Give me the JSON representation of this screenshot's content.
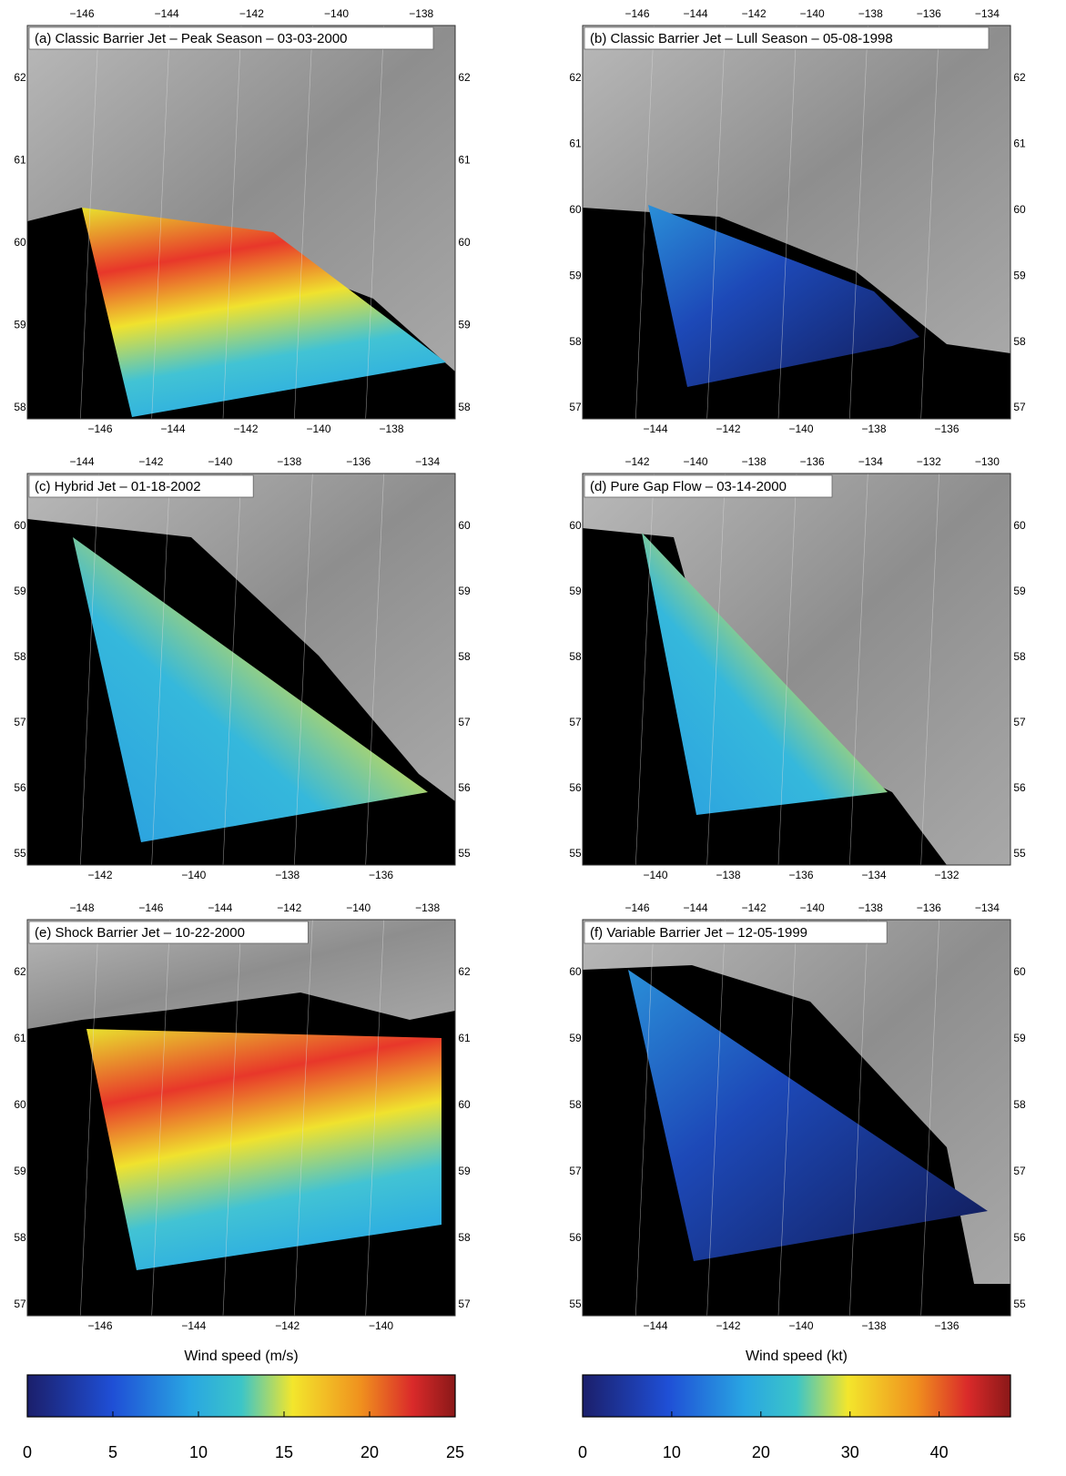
{
  "panels": [
    {
      "title": "(a) Classic Barrier Jet – Peak Season – 03-03-2000",
      "top_lon": [
        "−146",
        "−144",
        "−142",
        "−140",
        "−138"
      ],
      "bottom_lon": [
        "−146",
        "−144",
        "−142",
        "−140",
        "−138"
      ],
      "lat": [
        62,
        61,
        60,
        59,
        58
      ]
    },
    {
      "title": "(b) Classic Barrier Jet – Lull Season – 05-08-1998",
      "top_lon": [
        "−146",
        "−144",
        "−142",
        "−140",
        "−138",
        "−136",
        "−134"
      ],
      "bottom_lon": [
        "−144",
        "−142",
        "−140",
        "−138",
        "−136"
      ],
      "lat": [
        62,
        61,
        60,
        59,
        58,
        57
      ]
    },
    {
      "title": "(c) Hybrid Jet – 01-18-2002",
      "top_lon": [
        "−144",
        "−142",
        "−140",
        "−138",
        "−136",
        "−134"
      ],
      "bottom_lon": [
        "−142",
        "−140",
        "−138",
        "−136"
      ],
      "lat": [
        60,
        59,
        58,
        57,
        56,
        55
      ]
    },
    {
      "title": "(d) Pure Gap Flow – 03-14-2000",
      "top_lon": [
        "−142",
        "−140",
        "−138",
        "−136",
        "−134",
        "−132",
        "−130"
      ],
      "bottom_lon": [
        "−140",
        "−138",
        "−136",
        "−134",
        "−132"
      ],
      "lat": [
        60,
        59,
        58,
        57,
        56,
        55
      ]
    },
    {
      "title": "(e) Shock Barrier Jet – 10-22-2000",
      "top_lon": [
        "−148",
        "−146",
        "−144",
        "−142",
        "−140",
        "−138"
      ],
      "bottom_lon": [
        "−146",
        "−144",
        "−142",
        "−140"
      ],
      "lat": [
        62,
        61,
        60,
        59,
        58,
        57
      ]
    },
    {
      "title": "(f) Variable Barrier Jet – 12-05-1999",
      "top_lon": [
        "−146",
        "−144",
        "−142",
        "−140",
        "−138",
        "−136",
        "−134"
      ],
      "bottom_lon": [
        "−144",
        "−142",
        "−140",
        "−138",
        "−136"
      ],
      "lat": [
        60,
        59,
        58,
        57,
        56,
        55
      ]
    }
  ],
  "colorbars": [
    {
      "label": "Wind speed (m/s)",
      "lim": [
        0,
        25
      ],
      "ticks": [
        0,
        5,
        10,
        15,
        20,
        25
      ]
    },
    {
      "label": "Wind speed (kt)",
      "lim": [
        0,
        48
      ],
      "ticks": [
        0,
        10,
        20,
        30,
        40
      ]
    }
  ]
}
